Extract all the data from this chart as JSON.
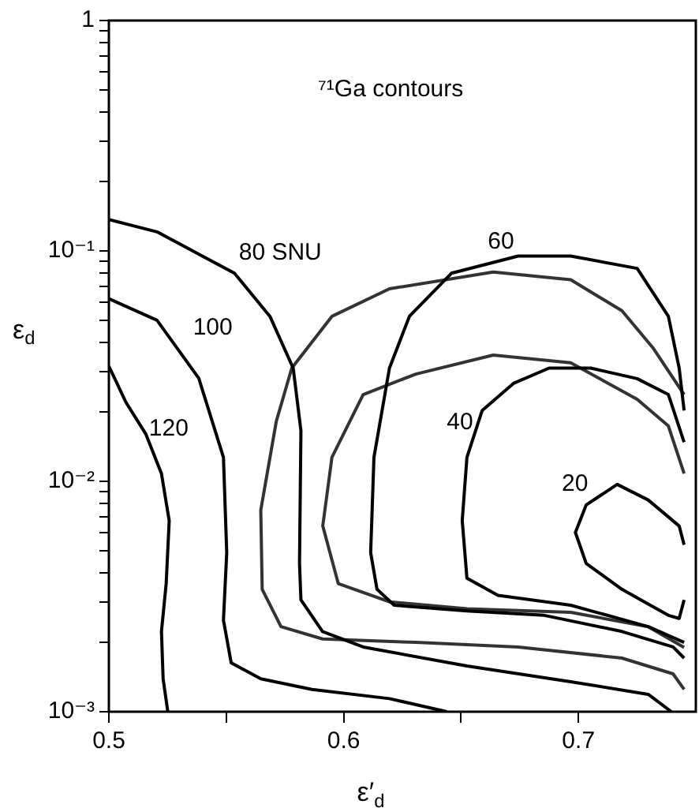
{
  "chart_data": {
    "type": "line",
    "title": "⁷¹Ga contours",
    "xlabel": "ε′$_{d}$",
    "ylabel": "ε$_{d}$",
    "log": "y",
    "grid": false,
    "legend": false,
    "marker": "none",
    "line_style": "solid",
    "xlim": [
      0.5,
      0.75
    ],
    "ylim": [
      0.001,
      1
    ],
    "xticks": [
      0.5,
      {
        "value": 0.55,
        "label": null
      },
      0.6,
      {
        "value": 0.65,
        "label": null
      },
      0.7
    ],
    "yticks": [
      {
        "value": 0.001,
        "label": "10⁻³"
      },
      {
        "value": 0.002,
        "label": null
      },
      {
        "value": 0.003,
        "label": null
      },
      {
        "value": 0.004,
        "label": null
      },
      {
        "value": 0.005,
        "label": null
      },
      {
        "value": 0.006,
        "label": null
      },
      {
        "value": 0.007,
        "label": null
      },
      {
        "value": 0.008,
        "label": null
      },
      {
        "value": 0.009,
        "label": null
      },
      {
        "value": 0.01,
        "label": "10⁻²"
      },
      {
        "value": 0.02,
        "label": null
      },
      {
        "value": 0.03,
        "label": null
      },
      {
        "value": 0.04,
        "label": null
      },
      {
        "value": 0.05,
        "label": null
      },
      {
        "value": 0.06,
        "label": null
      },
      {
        "value": 0.07,
        "label": null
      },
      {
        "value": 0.08,
        "label": null
      },
      {
        "value": 0.09,
        "label": null
      },
      {
        "value": 0.1,
        "label": "10⁻¹"
      },
      {
        "value": 0.2,
        "label": null
      },
      {
        "value": 0.3,
        "label": null
      },
      {
        "value": 0.4,
        "label": null
      },
      {
        "value": 0.5,
        "label": null
      },
      {
        "value": 0.6,
        "label": null
      },
      {
        "value": 0.7,
        "label": null
      },
      {
        "value": 0.8,
        "label": null
      },
      {
        "value": 0.9,
        "label": null
      },
      {
        "value": 1,
        "label": "1"
      }
    ],
    "series": [
      {
        "name": "120",
        "color": "#000000",
        "x": [
          0.5,
          0.5073,
          0.5158,
          0.5224,
          0.5257,
          0.5244,
          0.5224,
          0.5231,
          0.5251
        ],
        "values": [
          0.0316,
          0.022,
          0.016,
          0.0108,
          0.00675,
          0.00359,
          0.00223,
          0.00139,
          0.001
        ]
      },
      {
        "name": "100",
        "color": "#000000",
        "x": [
          0.5,
          0.5205,
          0.5383,
          0.5488,
          0.5502,
          0.5488,
          0.5521,
          0.5647,
          0.5865,
          0.6195,
          0.644
        ],
        "values": [
          0.062,
          0.05,
          0.028,
          0.0127,
          0.0049,
          0.0025,
          0.00163,
          0.00139,
          0.00125,
          0.00114,
          0.001
        ]
      },
      {
        "name": "80 SNU",
        "color": "#000000",
        "x": [
          0.5,
          0.5205,
          0.5535,
          0.5686,
          0.5785,
          0.5818,
          0.5812,
          0.5818,
          0.591,
          0.6083,
          0.6525,
          0.6967,
          0.7297,
          0.7396
        ],
        "values": [
          0.137,
          0.121,
          0.08,
          0.052,
          0.031,
          0.0166,
          0.0044,
          0.00306,
          0.00223,
          0.00191,
          0.00158,
          0.00135,
          0.00119,
          0.001
        ]
      },
      {
        "name": "60",
        "color": "#000000",
        "x": [
          0.745,
          0.7429,
          0.7383,
          0.725,
          0.6967,
          0.6743,
          0.6459,
          0.628,
          0.6195,
          0.6129,
          0.6115,
          0.6142,
          0.6215,
          0.6525,
          0.6855,
          0.7185,
          0.7403,
          0.745
        ],
        "values": [
          0.0203,
          0.031,
          0.052,
          0.084,
          0.095,
          0.095,
          0.08,
          0.052,
          0.031,
          0.0127,
          0.0049,
          0.0034,
          0.0029,
          0.00274,
          0.00262,
          0.00223,
          0.00191,
          0.00171
        ]
      },
      {
        "name": "40",
        "color": "#000000",
        "x": [
          0.745,
          0.7383,
          0.725,
          0.7053,
          0.6875,
          0.6723,
          0.659,
          0.6525,
          0.6505,
          0.6525,
          0.6657,
          0.6967,
          0.7297,
          0.745
        ],
        "values": [
          0.0148,
          0.0238,
          0.0279,
          0.031,
          0.031,
          0.0266,
          0.0203,
          0.0127,
          0.00675,
          0.0038,
          0.0032,
          0.0029,
          0.00234,
          0.002
        ]
      },
      {
        "name": "20",
        "color": "#000000",
        "x": [
          0.745,
          0.7429,
          0.7297,
          0.7165,
          0.7033,
          0.6987,
          0.7033,
          0.7185,
          0.7383,
          0.7429,
          0.745
        ],
        "values": [
          0.0053,
          0.0064,
          0.0083,
          0.0097,
          0.0079,
          0.006,
          0.0044,
          0.0034,
          0.00262,
          0.00254,
          0.00306
        ]
      },
      {
        "color": "#333333",
        "x": [
          0.745,
          0.7317,
          0.7185,
          0.6967,
          0.6637,
          0.6195,
          0.595,
          0.5779,
          0.5713,
          0.5647,
          0.5653,
          0.5733,
          0.591,
          0.6307,
          0.6743,
          0.7185,
          0.7403,
          0.745
        ],
        "values": [
          0.0238,
          0.038,
          0.055,
          0.075,
          0.081,
          0.0685,
          0.052,
          0.031,
          0.0182,
          0.0075,
          0.0034,
          0.00234,
          0.00207,
          0.002,
          0.00191,
          0.00171,
          0.00146,
          0.00125
        ]
      },
      {
        "color": "#333333",
        "x": [
          0.745,
          0.7383,
          0.725,
          0.6967,
          0.6637,
          0.6307,
          0.6083,
          0.595,
          0.5911,
          0.5977,
          0.6195,
          0.6525,
          0.6967,
          0.7297,
          0.745
        ],
        "values": [
          0.0108,
          0.0174,
          0.0227,
          0.0327,
          0.0353,
          0.0292,
          0.0238,
          0.0127,
          0.0064,
          0.0036,
          0.003,
          0.0028,
          0.0027,
          0.00234,
          0.0019
        ]
      }
    ]
  }
}
